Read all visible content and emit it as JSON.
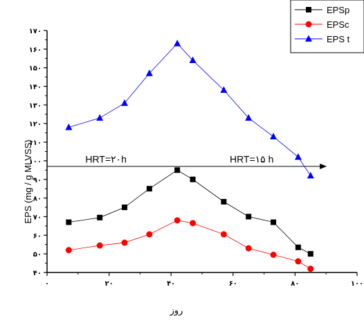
{
  "chart_data": {
    "type": "line",
    "xlabel": "روز",
    "ylabel": "EPS (mg / g MLVSS)",
    "xlim": [
      0,
      100
    ],
    "ylim": [
      40,
      170
    ],
    "x_ticks": [
      0,
      20,
      40,
      60,
      80,
      100
    ],
    "x_tick_labels": [
      "۰",
      "۲۰",
      "۴۰",
      "۶۰",
      "۸۰",
      "۱۰۰"
    ],
    "y_ticks": [
      40,
      50,
      60,
      70,
      80,
      90,
      100,
      110,
      120,
      130,
      140,
      150,
      160,
      170
    ],
    "y_tick_labels": [
      "۴۰",
      "۵۰",
      "۶۰",
      "۷۰",
      "۸۰",
      "۹۰",
      "۱۰۰",
      "۱۱۰",
      "۱۲۰",
      "۱۳۰",
      "۱۴۰",
      "۱۵۰",
      "۱۶۰",
      "۱۷۰"
    ],
    "grid": false,
    "legend_position": "top-right",
    "series": [
      {
        "name": "EPSp",
        "color": "#000000",
        "marker": "square",
        "x": [
          7,
          17,
          25,
          33,
          42,
          47,
          57,
          65,
          73,
          81,
          85
        ],
        "y": [
          67,
          69.5,
          75,
          85,
          95,
          90,
          78,
          70,
          67,
          53.5,
          50
        ]
      },
      {
        "name": "EPSc",
        "color": "#ff0000",
        "marker": "circle",
        "x": [
          7,
          17,
          25,
          33,
          42,
          47,
          57,
          65,
          73,
          81,
          85
        ],
        "y": [
          52,
          54.5,
          56,
          60.5,
          68,
          66.5,
          60.5,
          53,
          49.5,
          46,
          42
        ]
      },
      {
        "name": "EPS t",
        "color": "#0000ff",
        "marker": "triangle",
        "x": [
          7,
          17,
          25,
          33,
          42,
          47,
          57,
          65,
          73,
          81,
          85
        ],
        "y": [
          118,
          123,
          131,
          147,
          163,
          154,
          138,
          123,
          113,
          102,
          92
        ]
      }
    ],
    "annotations": [
      {
        "text": "HRT=۲۰h",
        "x": 19,
        "y": 99
      },
      {
        "text": "HRT=۱۵ h",
        "x": 66,
        "y": 99
      }
    ],
    "reference_arrow": {
      "x_start": 0,
      "x_end": 90,
      "y": 97
    }
  }
}
